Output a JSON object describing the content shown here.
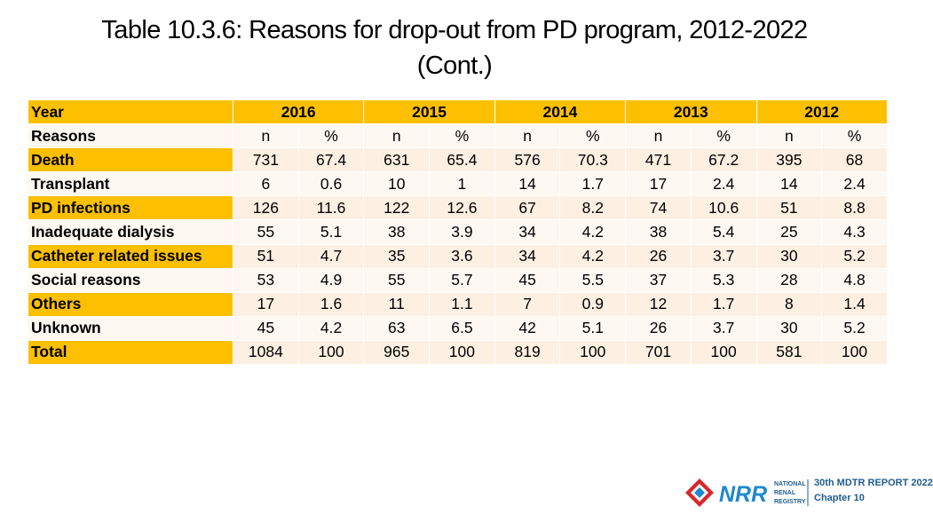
{
  "title": {
    "line1": "Table 10.3.6: Reasons for drop-out from PD program, 2012-2022",
    "line2": "(Cont.)"
  },
  "table": {
    "year_label": "Year",
    "reasons_label": "Reasons",
    "years": [
      "2016",
      "2015",
      "2014",
      "2013",
      "2012"
    ],
    "sub_headers": [
      "n",
      "%",
      "n",
      "%",
      "n",
      "%",
      "n",
      "%",
      "n",
      "%"
    ],
    "rows": [
      {
        "label": "Death",
        "values": [
          "731",
          "67.4",
          "631",
          "65.4",
          "576",
          "70.3",
          "471",
          "67.2",
          "395",
          "68"
        ]
      },
      {
        "label": "Transplant",
        "values": [
          "6",
          "0.6",
          "10",
          "1",
          "14",
          "1.7",
          "17",
          "2.4",
          "14",
          "2.4"
        ]
      },
      {
        "label": "PD infections",
        "values": [
          "126",
          "11.6",
          "122",
          "12.6",
          "67",
          "8.2",
          "74",
          "10.6",
          "51",
          "8.8"
        ]
      },
      {
        "label": "Inadequate dialysis",
        "values": [
          "55",
          "5.1",
          "38",
          "3.9",
          "34",
          "4.2",
          "38",
          "5.4",
          "25",
          "4.3"
        ]
      },
      {
        "label": "Catheter related issues",
        "values": [
          "51",
          "4.7",
          "35",
          "3.6",
          "34",
          "4.2",
          "26",
          "3.7",
          "30",
          "5.2"
        ]
      },
      {
        "label": "Social reasons",
        "values": [
          "53",
          "4.9",
          "55",
          "5.7",
          "45",
          "5.5",
          "37",
          "5.3",
          "28",
          "4.8"
        ]
      },
      {
        "label": "Others",
        "values": [
          "17",
          "1.6",
          "11",
          "1.1",
          "7",
          "0.9",
          "12",
          "1.7",
          "8",
          "1.4"
        ]
      },
      {
        "label": "Unknown",
        "values": [
          "45",
          "4.2",
          "63",
          "6.5",
          "42",
          "5.1",
          "26",
          "3.7",
          "30",
          "5.2"
        ]
      },
      {
        "label": "Total",
        "values": [
          "1084",
          "100",
          "965",
          "100",
          "819",
          "100",
          "701",
          "100",
          "581",
          "100"
        ]
      }
    ]
  },
  "footer": {
    "logo_text": "NRR",
    "org_lines": [
      "NATIONAL",
      "RENAL",
      "REGISTRY"
    ],
    "report_line1": "30th MDTR REPORT 2022",
    "report_line2": "Chapter 10"
  },
  "colors": {
    "header_bg": "#fcc000",
    "row_bg": "#fdf0e2",
    "row_bg_alt": "#fef8f2",
    "logo_red": "#d9262c",
    "logo_blue": "#1e88d0"
  }
}
